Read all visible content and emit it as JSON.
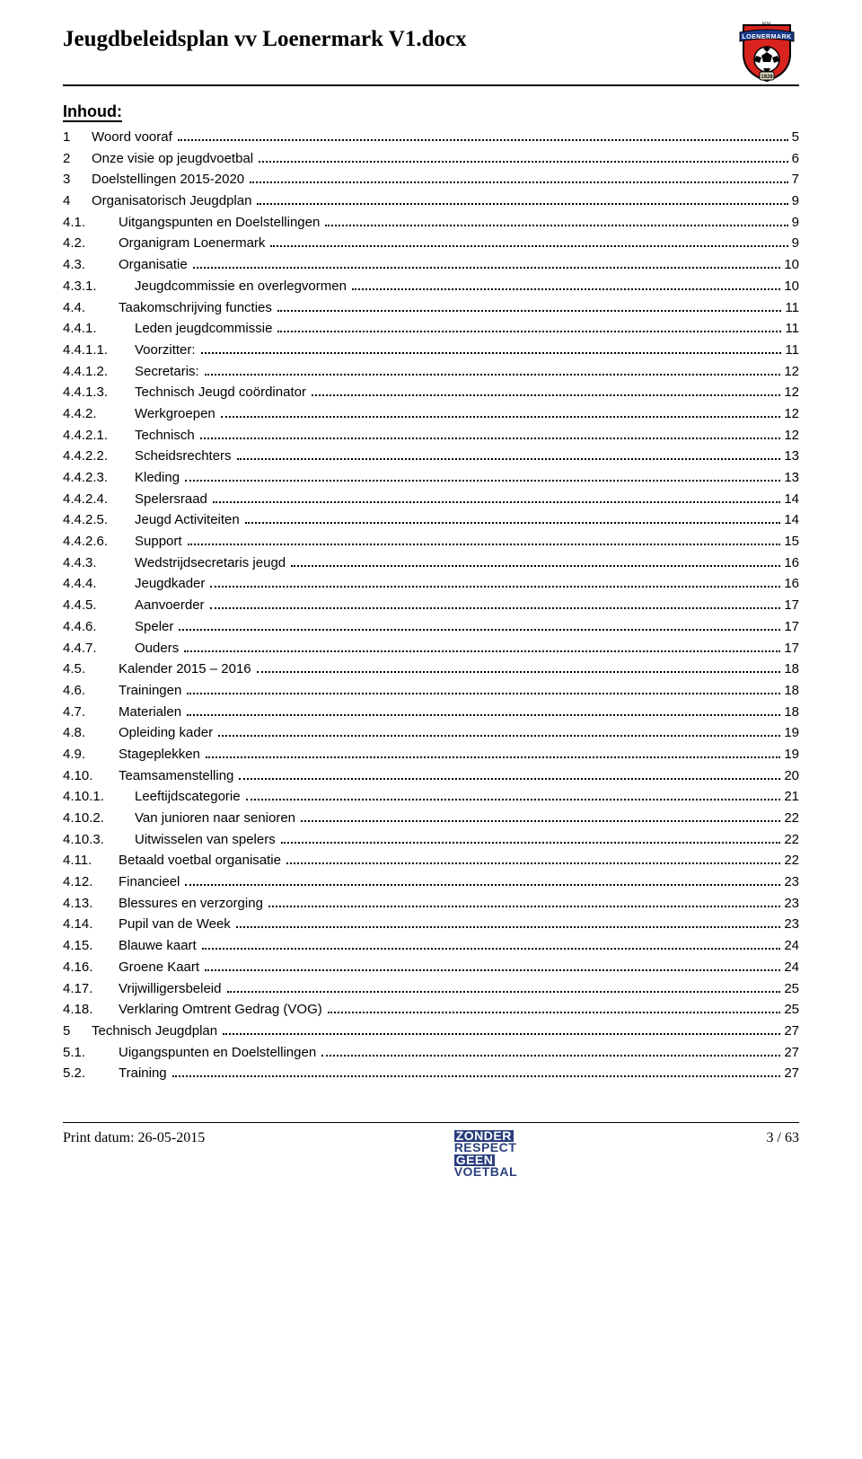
{
  "header": {
    "title": "Jeugdbeleidsplan vv Loenermark V1.docx",
    "logo": {
      "top_text": "V.V.",
      "banner_text": "LOENERMARK",
      "year": "1928",
      "shield_fill": "#d9231f",
      "shield_stroke": "#000000",
      "banner_fill": "#1a3b8a",
      "ball_fill": "#ffffff"
    }
  },
  "section_title": "Inhoud:",
  "toc": [
    {
      "level": 1,
      "num": "1",
      "label": "Woord vooraf",
      "page": "5"
    },
    {
      "level": 1,
      "num": "2",
      "label": "Onze visie op jeugdvoetbal",
      "page": "6"
    },
    {
      "level": 1,
      "num": "3",
      "label": "Doelstellingen 2015-2020",
      "page": "7"
    },
    {
      "level": 1,
      "num": "4",
      "label": "Organisatorisch Jeugdplan",
      "page": "9"
    },
    {
      "level": 2,
      "num": "4.1.",
      "label": "Uitgangspunten en Doelstellingen",
      "page": "9"
    },
    {
      "level": 2,
      "num": "4.2.",
      "label": "Organigram Loenermark",
      "page": "9"
    },
    {
      "level": 2,
      "num": "4.3.",
      "label": "Organisatie",
      "page": "10"
    },
    {
      "level": 3,
      "num": "4.3.1.",
      "label": "Jeugdcommissie en overlegvormen",
      "page": "10"
    },
    {
      "level": 2,
      "num": "4.4.",
      "label": "Taakomschrijving functies",
      "page": "11"
    },
    {
      "level": 3,
      "num": "4.4.1.",
      "label": "Leden jeugdcommissie",
      "page": "11"
    },
    {
      "level": 3,
      "num": "4.4.1.1.",
      "label": "Voorzitter:",
      "page": "11"
    },
    {
      "level": 3,
      "num": "4.4.1.2.",
      "label": "Secretaris:",
      "page": "12"
    },
    {
      "level": 3,
      "num": "4.4.1.3.",
      "label": "Technisch Jeugd coördinator",
      "page": "12"
    },
    {
      "level": 3,
      "num": "4.4.2.",
      "label": "Werkgroepen",
      "page": "12"
    },
    {
      "level": 3,
      "num": "4.4.2.1.",
      "label": "Technisch",
      "page": "12"
    },
    {
      "level": 3,
      "num": "4.4.2.2.",
      "label": "Scheidsrechters",
      "page": "13"
    },
    {
      "level": 3,
      "num": "4.4.2.3.",
      "label": "Kleding",
      "page": "13"
    },
    {
      "level": 3,
      "num": "4.4.2.4.",
      "label": "Spelersraad",
      "page": "14"
    },
    {
      "level": 3,
      "num": "4.4.2.5.",
      "label": "Jeugd Activiteiten",
      "page": "14"
    },
    {
      "level": 3,
      "num": "4.4.2.6.",
      "label": "Support",
      "page": "15"
    },
    {
      "level": 3,
      "num": "4.4.3.",
      "label": "Wedstrijdsecretaris jeugd",
      "page": "16"
    },
    {
      "level": 3,
      "num": "4.4.4.",
      "label": "Jeugdkader",
      "page": "16"
    },
    {
      "level": 3,
      "num": "4.4.5.",
      "label": "Aanvoerder",
      "page": "17"
    },
    {
      "level": 3,
      "num": "4.4.6.",
      "label": "Speler",
      "page": "17"
    },
    {
      "level": 3,
      "num": "4.4.7.",
      "label": "Ouders",
      "page": "17"
    },
    {
      "level": 2,
      "num": "4.5.",
      "label": "Kalender 2015 – 2016",
      "page": "18"
    },
    {
      "level": 2,
      "num": "4.6.",
      "label": "Trainingen",
      "page": "18"
    },
    {
      "level": 2,
      "num": "4.7.",
      "label": "Materialen",
      "page": "18"
    },
    {
      "level": 2,
      "num": "4.8.",
      "label": "Opleiding kader",
      "page": "19"
    },
    {
      "level": 2,
      "num": "4.9.",
      "label": "Stageplekken",
      "page": "19"
    },
    {
      "level": 2,
      "num": "4.10.",
      "label": "Teamsamenstelling",
      "page": "20"
    },
    {
      "level": 3,
      "num": "4.10.1.",
      "label": "Leeftijdscategorie",
      "page": "21"
    },
    {
      "level": 3,
      "num": "4.10.2.",
      "label": "Van junioren naar senioren",
      "page": "22"
    },
    {
      "level": 3,
      "num": "4.10.3.",
      "label": "Uitwisselen van spelers",
      "page": "22"
    },
    {
      "level": 2,
      "num": "4.11.",
      "label": "Betaald voetbal organisatie",
      "page": "22"
    },
    {
      "level": 2,
      "num": "4.12.",
      "label": "Financieel",
      "page": "23"
    },
    {
      "level": 2,
      "num": "4.13.",
      "label": "Blessures en verzorging",
      "page": "23"
    },
    {
      "level": 2,
      "num": "4.14.",
      "label": "Pupil van de Week",
      "page": "23"
    },
    {
      "level": 2,
      "num": "4.15.",
      "label": "Blauwe kaart",
      "page": "24"
    },
    {
      "level": 2,
      "num": "4.16.",
      "label": "Groene Kaart",
      "page": "24"
    },
    {
      "level": 2,
      "num": "4.17.",
      "label": "Vrijwilligersbeleid",
      "page": "25"
    },
    {
      "level": 2,
      "num": "4.18.",
      "label": "Verklaring Omtrent Gedrag (VOG)",
      "page": "25"
    },
    {
      "level": 1,
      "num": "5",
      "label": "Technisch Jeugdplan",
      "page": "27"
    },
    {
      "level": 2,
      "num": "5.1.",
      "label": "Uigangspunten en Doelstellingen",
      "page": "27"
    },
    {
      "level": 2,
      "num": "5.2.",
      "label": "Training",
      "page": "27"
    }
  ],
  "footer": {
    "left": "Print datum: 26-05-2015",
    "right": "3 / 63",
    "logo_lines": [
      "ZONDER",
      "RESPECT",
      "GEEN",
      "VOETBAL"
    ]
  }
}
